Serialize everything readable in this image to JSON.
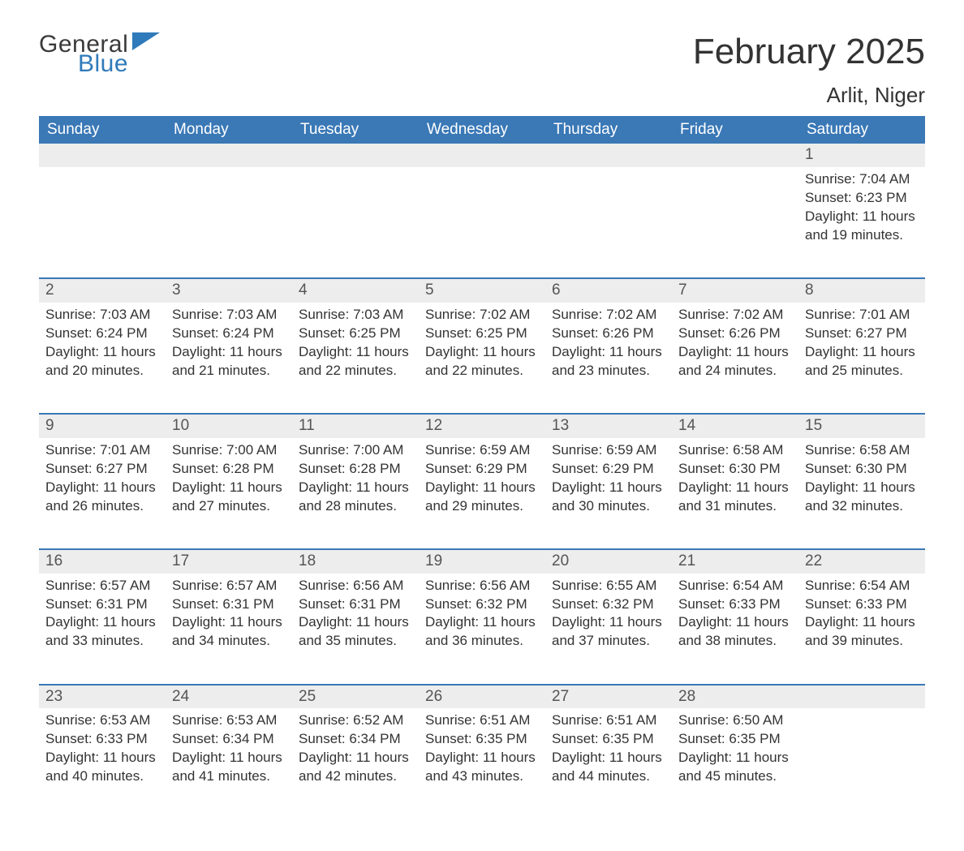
{
  "brand": {
    "word1": "General",
    "word2": "Blue",
    "word1_color": "#3a3a3a",
    "word2_color": "#2f7aba",
    "flag_color": "#2f7aba"
  },
  "header": {
    "month_title": "February 2025",
    "location": "Arlit, Niger"
  },
  "styling": {
    "header_bg": "#3a78b6",
    "header_text_color": "#ffffff",
    "daynum_bg": "#ededed",
    "daynum_color": "#555555",
    "body_text_color": "#333333",
    "rule_color": "#3a78b6",
    "page_bg": "#ffffff",
    "th_fontsize": 19,
    "daynum_fontsize": 19,
    "body_fontsize": 17,
    "title_fontsize": 44,
    "location_fontsize": 26
  },
  "weekdays": [
    "Sunday",
    "Monday",
    "Tuesday",
    "Wednesday",
    "Thursday",
    "Friday",
    "Saturday"
  ],
  "labels": {
    "sunrise_prefix": "Sunrise: ",
    "sunset_prefix": "Sunset: ",
    "daylight_prefix": "Daylight: "
  },
  "weeks": [
    [
      null,
      null,
      null,
      null,
      null,
      null,
      {
        "n": "1",
        "sunrise": "7:04 AM",
        "sunset": "6:23 PM",
        "daylight": "11 hours and 19 minutes."
      }
    ],
    [
      {
        "n": "2",
        "sunrise": "7:03 AM",
        "sunset": "6:24 PM",
        "daylight": "11 hours and 20 minutes."
      },
      {
        "n": "3",
        "sunrise": "7:03 AM",
        "sunset": "6:24 PM",
        "daylight": "11 hours and 21 minutes."
      },
      {
        "n": "4",
        "sunrise": "7:03 AM",
        "sunset": "6:25 PM",
        "daylight": "11 hours and 22 minutes."
      },
      {
        "n": "5",
        "sunrise": "7:02 AM",
        "sunset": "6:25 PM",
        "daylight": "11 hours and 22 minutes."
      },
      {
        "n": "6",
        "sunrise": "7:02 AM",
        "sunset": "6:26 PM",
        "daylight": "11 hours and 23 minutes."
      },
      {
        "n": "7",
        "sunrise": "7:02 AM",
        "sunset": "6:26 PM",
        "daylight": "11 hours and 24 minutes."
      },
      {
        "n": "8",
        "sunrise": "7:01 AM",
        "sunset": "6:27 PM",
        "daylight": "11 hours and 25 minutes."
      }
    ],
    [
      {
        "n": "9",
        "sunrise": "7:01 AM",
        "sunset": "6:27 PM",
        "daylight": "11 hours and 26 minutes."
      },
      {
        "n": "10",
        "sunrise": "7:00 AM",
        "sunset": "6:28 PM",
        "daylight": "11 hours and 27 minutes."
      },
      {
        "n": "11",
        "sunrise": "7:00 AM",
        "sunset": "6:28 PM",
        "daylight": "11 hours and 28 minutes."
      },
      {
        "n": "12",
        "sunrise": "6:59 AM",
        "sunset": "6:29 PM",
        "daylight": "11 hours and 29 minutes."
      },
      {
        "n": "13",
        "sunrise": "6:59 AM",
        "sunset": "6:29 PM",
        "daylight": "11 hours and 30 minutes."
      },
      {
        "n": "14",
        "sunrise": "6:58 AM",
        "sunset": "6:30 PM",
        "daylight": "11 hours and 31 minutes."
      },
      {
        "n": "15",
        "sunrise": "6:58 AM",
        "sunset": "6:30 PM",
        "daylight": "11 hours and 32 minutes."
      }
    ],
    [
      {
        "n": "16",
        "sunrise": "6:57 AM",
        "sunset": "6:31 PM",
        "daylight": "11 hours and 33 minutes."
      },
      {
        "n": "17",
        "sunrise": "6:57 AM",
        "sunset": "6:31 PM",
        "daylight": "11 hours and 34 minutes."
      },
      {
        "n": "18",
        "sunrise": "6:56 AM",
        "sunset": "6:31 PM",
        "daylight": "11 hours and 35 minutes."
      },
      {
        "n": "19",
        "sunrise": "6:56 AM",
        "sunset": "6:32 PM",
        "daylight": "11 hours and 36 minutes."
      },
      {
        "n": "20",
        "sunrise": "6:55 AM",
        "sunset": "6:32 PM",
        "daylight": "11 hours and 37 minutes."
      },
      {
        "n": "21",
        "sunrise": "6:54 AM",
        "sunset": "6:33 PM",
        "daylight": "11 hours and 38 minutes."
      },
      {
        "n": "22",
        "sunrise": "6:54 AM",
        "sunset": "6:33 PM",
        "daylight": "11 hours and 39 minutes."
      }
    ],
    [
      {
        "n": "23",
        "sunrise": "6:53 AM",
        "sunset": "6:33 PM",
        "daylight": "11 hours and 40 minutes."
      },
      {
        "n": "24",
        "sunrise": "6:53 AM",
        "sunset": "6:34 PM",
        "daylight": "11 hours and 41 minutes."
      },
      {
        "n": "25",
        "sunrise": "6:52 AM",
        "sunset": "6:34 PM",
        "daylight": "11 hours and 42 minutes."
      },
      {
        "n": "26",
        "sunrise": "6:51 AM",
        "sunset": "6:35 PM",
        "daylight": "11 hours and 43 minutes."
      },
      {
        "n": "27",
        "sunrise": "6:51 AM",
        "sunset": "6:35 PM",
        "daylight": "11 hours and 44 minutes."
      },
      {
        "n": "28",
        "sunrise": "6:50 AM",
        "sunset": "6:35 PM",
        "daylight": "11 hours and 45 minutes."
      },
      null
    ]
  ]
}
